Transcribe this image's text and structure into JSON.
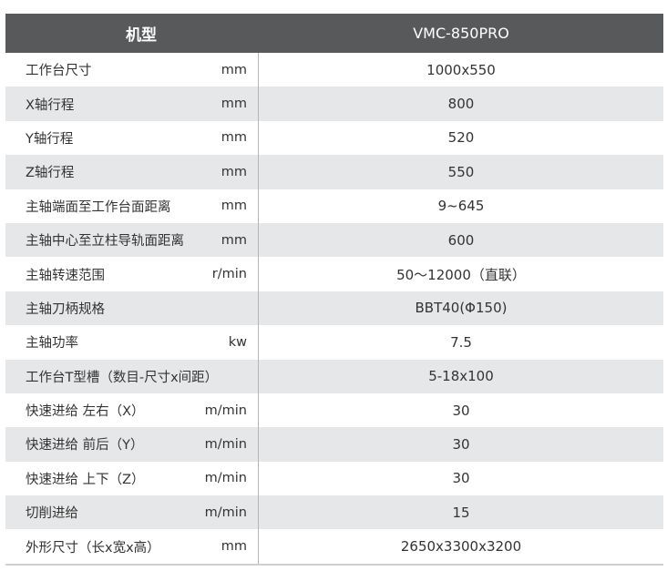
{
  "header": {
    "label": "机型",
    "model": "VMC-850PRO"
  },
  "rows": [
    {
      "label": "工作台尺寸",
      "unit": "mm",
      "value": "1000x550"
    },
    {
      "label": "X轴行程",
      "unit": "mm",
      "value": "800"
    },
    {
      "label": "Y轴行程",
      "unit": "mm",
      "value": "520"
    },
    {
      "label": "Z轴行程",
      "unit": "mm",
      "value": "550"
    },
    {
      "label": "主轴端面至工作台面距离",
      "unit": "mm",
      "value": "9~645"
    },
    {
      "label": "主轴中心至立柱导轨面距离",
      "unit": "mm",
      "value": "600"
    },
    {
      "label": "主轴转速范围",
      "unit": "r/min",
      "value": "50～12000（直联）"
    },
    {
      "label": "主轴刀柄规格",
      "unit": "",
      "value": "BBT40(Φ150)"
    },
    {
      "label": "主轴功率",
      "unit": "kw",
      "value": "7.5"
    },
    {
      "label": "工作台T型槽（数目-尺寸x间距）",
      "unit": "",
      "value": "5-18x100"
    },
    {
      "label": "快速进给 左右（X）",
      "unit": "m/min",
      "value": "30"
    },
    {
      "label": "快速进给 前后（Y）",
      "unit": "m/min",
      "value": "30"
    },
    {
      "label": "快速进给 上下（Z）",
      "unit": "m/min",
      "value": "30"
    },
    {
      "label": "切削进给",
      "unit": "m/min",
      "value": "15"
    },
    {
      "label": "外形尺寸（长x宽x高）",
      "unit": "mm",
      "value": "2650x3300x3200"
    }
  ]
}
